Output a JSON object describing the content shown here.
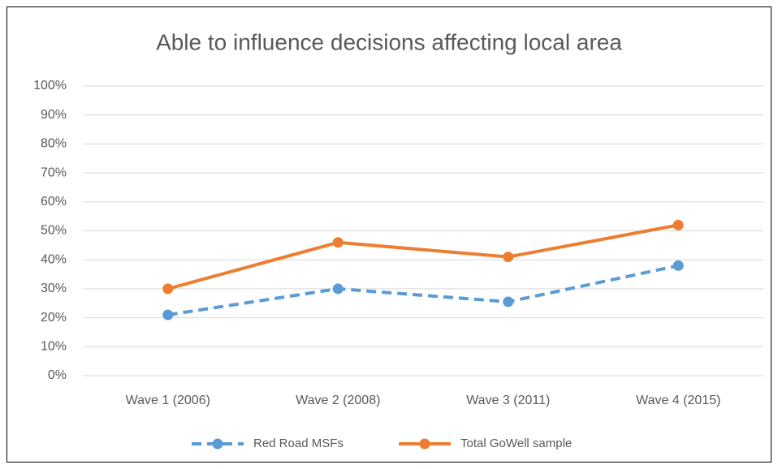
{
  "chart_data": {
    "type": "line",
    "title": "Able to influence decisions affecting local area",
    "categories": [
      "Wave 1 (2006)",
      "Wave 2 (2008)",
      "Wave 3 (2011)",
      "Wave 4 (2015)"
    ],
    "series": [
      {
        "name": "Red Road MSFs",
        "color": "#5b9bd5",
        "line_style": "dashed",
        "values": [
          21,
          30,
          25.5,
          38
        ]
      },
      {
        "name": "Total GoWell sample",
        "color": "#ed7d31",
        "line_style": "solid",
        "values": [
          30,
          46,
          41,
          52
        ]
      }
    ],
    "ylim": [
      0,
      100
    ],
    "yticks": [
      {
        "value": 0,
        "label": "0%"
      },
      {
        "value": 10,
        "label": "10%"
      },
      {
        "value": 20,
        "label": "20%"
      },
      {
        "value": 30,
        "label": "30%"
      },
      {
        "value": 40,
        "label": "40%"
      },
      {
        "value": 50,
        "label": "50%"
      },
      {
        "value": 60,
        "label": "60%"
      },
      {
        "value": 70,
        "label": "70%"
      },
      {
        "value": 80,
        "label": "80%"
      },
      {
        "value": 90,
        "label": "90%"
      },
      {
        "value": 100,
        "label": "100%"
      }
    ],
    "grid": true,
    "legend": "bottom"
  }
}
